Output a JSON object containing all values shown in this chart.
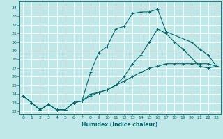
{
  "xlabel": "Humidex (Indice chaleur)",
  "bg_color": "#c0e8e8",
  "grid_color": "#ffffff",
  "line_color": "#006868",
  "xlim": [
    -0.5,
    23.5
  ],
  "ylim": [
    21.7,
    34.7
  ],
  "xticks": [
    0,
    1,
    2,
    3,
    4,
    5,
    6,
    7,
    8,
    9,
    10,
    11,
    12,
    13,
    14,
    15,
    16,
    17,
    18,
    19,
    20,
    21,
    22,
    23
  ],
  "yticks": [
    22,
    23,
    24,
    25,
    26,
    27,
    28,
    29,
    30,
    31,
    32,
    33,
    34
  ],
  "line1_x": [
    0,
    1,
    2,
    3,
    4,
    5,
    6,
    7,
    8,
    9,
    10,
    11,
    12,
    13,
    14,
    15,
    16,
    17,
    20,
    21,
    22,
    23
  ],
  "line1_y": [
    23.8,
    23.0,
    22.2,
    22.8,
    22.2,
    22.2,
    23.0,
    23.2,
    26.5,
    28.8,
    29.5,
    31.5,
    31.8,
    33.3,
    33.5,
    33.5,
    33.8,
    31.2,
    30.0,
    29.2,
    28.5,
    27.2
  ],
  "line2_x": [
    0,
    1,
    2,
    3,
    4,
    5,
    6,
    7,
    8,
    9,
    10,
    11,
    12,
    13,
    14,
    15,
    16,
    17,
    18,
    19,
    20,
    21,
    22,
    23
  ],
  "line2_y": [
    23.8,
    23.0,
    22.2,
    22.8,
    22.2,
    22.2,
    23.0,
    23.2,
    23.8,
    24.2,
    24.5,
    25.0,
    25.5,
    26.0,
    26.5,
    27.0,
    27.2,
    27.5,
    27.5,
    27.5,
    27.5,
    27.5,
    27.5,
    27.2
  ],
  "line3_x": [
    0,
    1,
    2,
    3,
    4,
    5,
    6,
    7,
    8,
    9,
    10,
    11,
    12,
    13,
    14,
    15,
    16,
    17,
    18,
    19,
    20,
    21,
    22,
    23
  ],
  "line3_y": [
    23.8,
    23.0,
    22.2,
    22.8,
    22.2,
    22.2,
    23.0,
    23.2,
    24.0,
    24.2,
    24.5,
    25.0,
    26.0,
    27.5,
    28.5,
    30.0,
    31.5,
    31.0,
    30.0,
    29.2,
    28.2,
    27.2,
    27.0,
    27.2
  ],
  "tick_fontsize": 4.5,
  "xlabel_fontsize": 5.5,
  "linewidth": 0.8,
  "markersize": 2.5
}
